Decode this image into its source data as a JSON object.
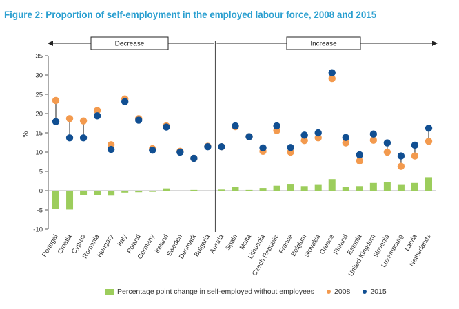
{
  "figure": {
    "title": "Figure 2: Proportion of self-employment in the employed labour force, 2008 and 2015"
  },
  "colors": {
    "title": "#2a9fd0",
    "bar": "#9ccd5c",
    "dot_2008": "#f39a4e",
    "dot_2015": "#114f92",
    "axis": "#555555",
    "divider": "#444444"
  },
  "chart_data": {
    "type": "scatter",
    "ylabel": "%",
    "ylim": [
      -10,
      35
    ],
    "yticks": [
      -10,
      -5,
      0,
      5,
      10,
      15,
      20,
      25,
      30,
      35
    ],
    "grid": false,
    "legend_position": "bottom",
    "categories": [
      "Portugal",
      "Croatia",
      "Cyprus",
      "Romania",
      "Hungary",
      "Italy",
      "Poland",
      "Germany",
      "Ireland",
      "Sweden",
      "Denmark",
      "Bulgaria",
      "Austria",
      "Spain",
      "Malta",
      "Lithuania",
      "Czech Republic",
      "France",
      "Belgium",
      "Slovakia",
      "Greece",
      "Finland",
      "Estonia",
      "United Kingdom",
      "Slovenia",
      "Luxembourg",
      "Latvia",
      "Netherlands"
    ],
    "groups": [
      {
        "label": "Decrease",
        "from": 0,
        "to": 11
      },
      {
        "label": "Increase",
        "from": 12,
        "to": 27
      }
    ],
    "series": [
      {
        "name": "Percentage point change in self-employed without employees",
        "kind": "bar",
        "values": [
          -4.8,
          -4.9,
          -1.2,
          -1.1,
          -1.3,
          -0.5,
          -0.4,
          -0.3,
          0.6,
          0.0,
          0.2,
          0.0,
          0.3,
          0.9,
          0.2,
          0.7,
          1.3,
          1.6,
          1.2,
          1.5,
          3.0,
          1.0,
          1.2,
          2.0,
          2.2,
          1.5,
          2.0,
          3.5
        ]
      },
      {
        "name": "2008",
        "kind": "dot",
        "values": [
          23.4,
          18.7,
          18.1,
          20.8,
          11.9,
          23.8,
          18.7,
          10.9,
          16.8,
          10.2,
          8.4,
          11.5,
          11.4,
          16.6,
          14.0,
          10.2,
          15.6,
          10.0,
          13.0,
          13.7,
          29.1,
          12.4,
          7.7,
          13.1,
          10.0,
          6.3,
          9.0,
          12.8
        ]
      },
      {
        "name": "2015",
        "kind": "dot",
        "values": [
          17.9,
          13.7,
          13.7,
          19.4,
          10.7,
          23.1,
          18.3,
          10.5,
          16.5,
          10.0,
          8.4,
          11.4,
          11.4,
          16.8,
          14.0,
          11.1,
          16.8,
          11.2,
          14.4,
          15.0,
          30.6,
          13.8,
          9.3,
          14.7,
          12.4,
          9.0,
          11.8,
          16.2
        ]
      }
    ]
  },
  "legend": {
    "bar_label": "Percentage point change in self-employed without employees",
    "label_2008": "2008",
    "label_2015": "2015"
  }
}
